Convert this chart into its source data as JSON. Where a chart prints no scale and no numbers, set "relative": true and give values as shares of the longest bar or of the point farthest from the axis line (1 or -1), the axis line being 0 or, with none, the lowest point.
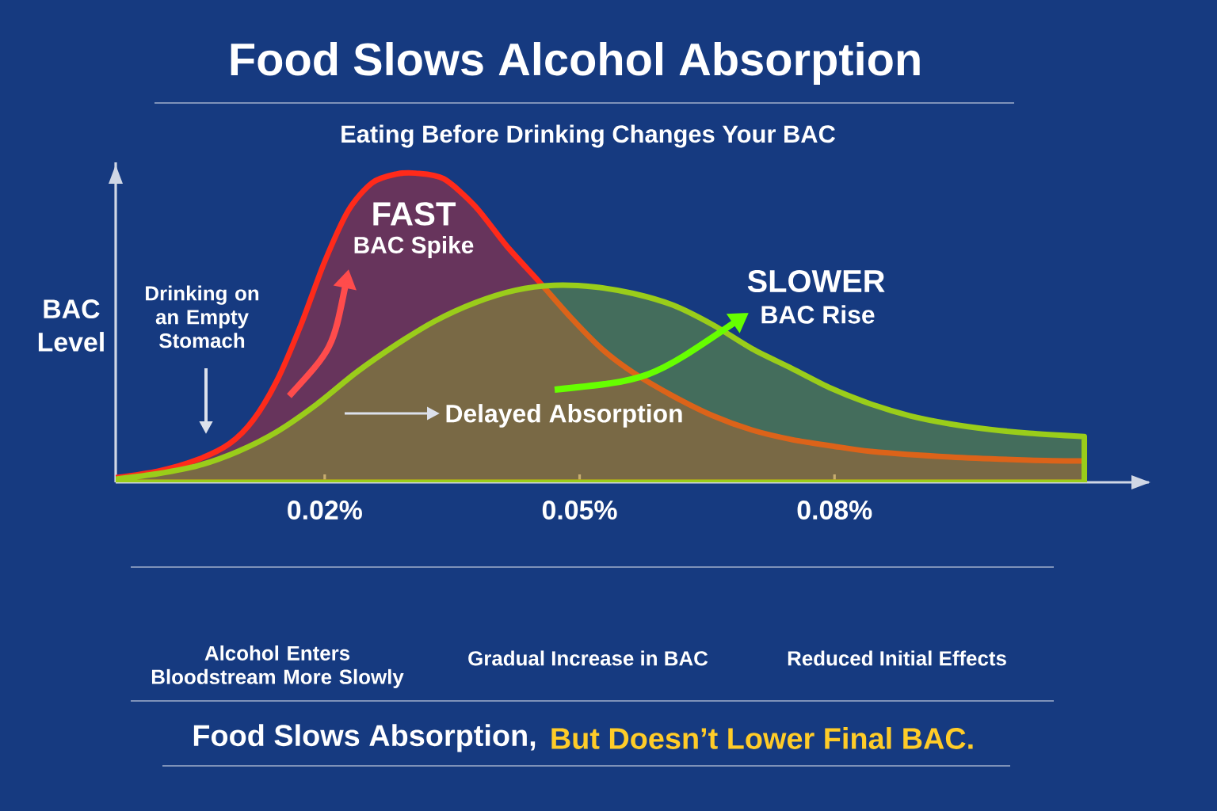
{
  "chart_data": {
    "type": "area",
    "title": "Food Slows Alcohol Absorption",
    "subtitle": "Eating Before Drinking Changes Your BAC",
    "ylabel": "BAC Level",
    "relative": true,
    "xlim": [
      -0.0046,
      0.117
    ],
    "xticks": [
      {
        "value": 0.02,
        "label": "0.02%"
      },
      {
        "value": 0.05,
        "label": "0.05%"
      },
      {
        "value": 0.08,
        "label": "0.08%"
      }
    ],
    "series": [
      {
        "color": "#ff2a1a",
        "x": [
          -0.0046,
          0.0004,
          0.0051,
          0.0088,
          0.0116,
          0.0144,
          0.0172,
          0.02,
          0.0228,
          0.0256,
          0.0284,
          0.0307,
          0.034,
          0.0377,
          0.0414,
          0.0452,
          0.0489,
          0.0526,
          0.0563,
          0.061,
          0.0657,
          0.0703,
          0.075,
          0.0796,
          0.0843,
          0.0936,
          0.1029,
          0.1094
        ],
        "values": [
          0.015,
          0.036,
          0.074,
          0.125,
          0.202,
          0.33,
          0.509,
          0.714,
          0.88,
          0.969,
          0.997,
          1,
          0.982,
          0.893,
          0.765,
          0.65,
          0.535,
          0.432,
          0.355,
          0.279,
          0.215,
          0.169,
          0.138,
          0.118,
          0.1,
          0.082,
          0.072,
          0.069
        ]
      },
      {
        "color": "#9acd1a",
        "x": [
          -0.0046,
          0.0004,
          0.0051,
          0.0098,
          0.0144,
          0.0191,
          0.0237,
          0.0284,
          0.033,
          0.0377,
          0.0424,
          0.047,
          0.0517,
          0.0563,
          0.061,
          0.0657,
          0.0703,
          0.075,
          0.0796,
          0.0843,
          0.0889,
          0.0936,
          0.0983,
          0.1029,
          0.1094
        ],
        "values": [
          0.01,
          0.028,
          0.054,
          0.1,
          0.164,
          0.253,
          0.355,
          0.445,
          0.522,
          0.581,
          0.621,
          0.637,
          0.632,
          0.611,
          0.573,
          0.509,
          0.432,
          0.368,
          0.304,
          0.253,
          0.215,
          0.189,
          0.171,
          0.159,
          0.148
        ]
      }
    ],
    "annotations": [
      "Drinking on an Empty Stomach",
      "FAST",
      "BAC Spike",
      "SLOWER",
      "BAC Rise",
      "Delayed Absorption",
      "Alcohol Enters Bloodstream More Slowly",
      "Gradual Increase in BAC",
      "Reduced Initial Effects",
      "Food Slows Absorption,",
      "But Doesn’t Lower Final BAC."
    ]
  }
}
